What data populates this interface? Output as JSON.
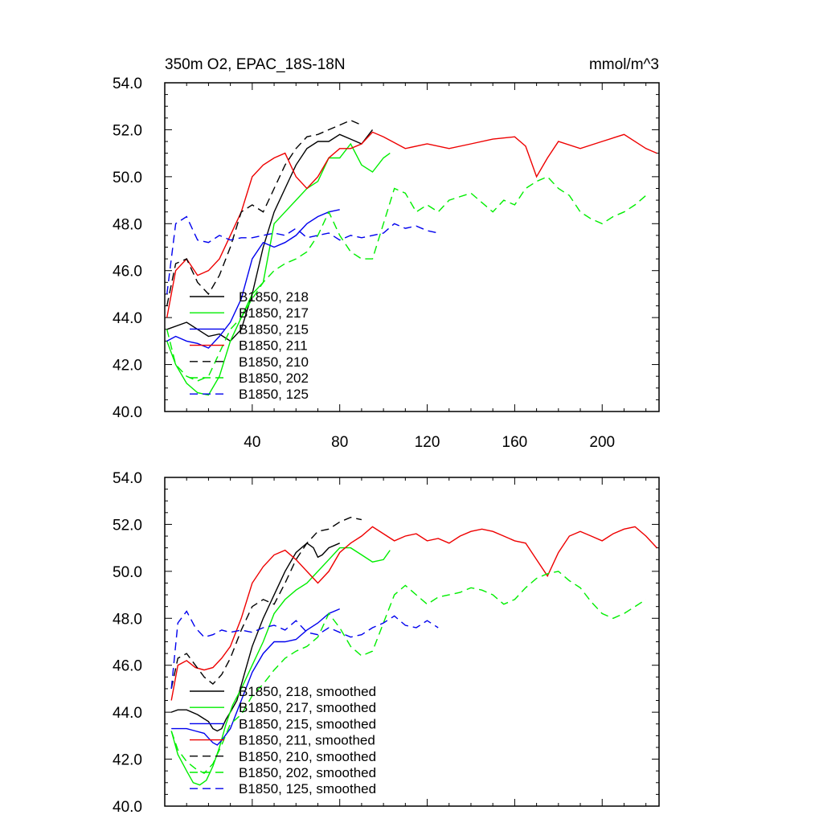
{
  "colors": {
    "black": "#000000",
    "green": "#00ee00",
    "blue": "#0000ee",
    "red": "#ee0000"
  },
  "chart_data": [
    {
      "type": "line",
      "title_left": "350m O2, EPAC_18S-18N",
      "title_right": "mmol/m^3",
      "xlabel": "",
      "ylabel": "",
      "xlim": [
        0,
        226
      ],
      "ylim": [
        40,
        54
      ],
      "yticks": [
        40,
        42,
        44,
        46,
        48,
        50,
        52,
        54
      ],
      "ytick_labels": [
        "40.0",
        "42.0",
        "44.0",
        "46.0",
        "48.0",
        "50.0",
        "52.0",
        "54.0"
      ],
      "xticks": [
        40,
        80,
        120,
        160,
        200
      ],
      "xtick_labels": [
        "40",
        "80",
        "120",
        "160",
        "200"
      ],
      "grid": false,
      "legend_position": "lower-left",
      "series": [
        {
          "name": "B1850, 218",
          "color": "black",
          "dash": "solid",
          "x": [
            1,
            10,
            20,
            25,
            30,
            35,
            40,
            45,
            50,
            55,
            60,
            65,
            70,
            75,
            80,
            85,
            90,
            95
          ],
          "y": [
            43.5,
            43.8,
            43.2,
            43.3,
            43.0,
            43.5,
            45.0,
            47.0,
            48.5,
            49.5,
            50.5,
            51.2,
            51.5,
            51.5,
            51.8,
            51.6,
            51.4,
            52.0
          ]
        },
        {
          "name": "B1850, 217",
          "color": "green",
          "dash": "solid",
          "x": [
            1,
            5,
            10,
            15,
            20,
            25,
            30,
            35,
            40,
            45,
            50,
            55,
            60,
            65,
            70,
            75,
            80,
            85,
            90,
            95,
            100,
            103
          ],
          "y": [
            43.0,
            42.0,
            41.2,
            40.8,
            40.7,
            41.5,
            43.0,
            44.0,
            45.0,
            45.5,
            48.0,
            48.5,
            49.0,
            49.5,
            49.8,
            50.8,
            50.8,
            51.4,
            50.5,
            50.2,
            50.8,
            51.0
          ]
        },
        {
          "name": "B1850, 215",
          "color": "blue",
          "dash": "solid",
          "x": [
            1,
            5,
            10,
            15,
            20,
            25,
            30,
            35,
            40,
            45,
            50,
            55,
            60,
            65,
            70,
            75,
            80
          ],
          "y": [
            43.0,
            43.2,
            43.0,
            42.9,
            42.7,
            43.2,
            43.8,
            44.8,
            46.5,
            47.2,
            47.0,
            47.2,
            47.5,
            48.0,
            48.3,
            48.5,
            48.6
          ]
        },
        {
          "name": "B1850, 211",
          "color": "red",
          "dash": "solid",
          "x": [
            1,
            5,
            10,
            15,
            20,
            25,
            30,
            35,
            40,
            45,
            50,
            55,
            60,
            65,
            70,
            75,
            80,
            85,
            90,
            95,
            100,
            110,
            120,
            130,
            140,
            150,
            160,
            165,
            170,
            175,
            180,
            190,
            200,
            210,
            220,
            225
          ],
          "y": [
            44.0,
            46.0,
            46.5,
            45.8,
            46.0,
            46.5,
            47.5,
            48.5,
            50.0,
            50.5,
            50.8,
            51.0,
            50.0,
            49.5,
            50.0,
            50.8,
            51.2,
            51.2,
            51.4,
            51.9,
            51.7,
            51.2,
            51.4,
            51.2,
            51.4,
            51.6,
            51.7,
            51.3,
            50.0,
            50.8,
            51.5,
            51.2,
            51.5,
            51.8,
            51.2,
            51.0
          ]
        },
        {
          "name": "B1850, 210",
          "color": "black",
          "dash": "dashed",
          "x": [
            1,
            5,
            10,
            15,
            20,
            25,
            30,
            35,
            40,
            45,
            50,
            55,
            60,
            65,
            70,
            75,
            80,
            85,
            90
          ],
          "y": [
            44.5,
            46.3,
            46.5,
            45.5,
            45.0,
            45.8,
            47.0,
            48.5,
            48.8,
            48.5,
            49.5,
            50.5,
            51.2,
            51.7,
            51.8,
            52.0,
            52.2,
            52.4,
            52.2
          ]
        },
        {
          "name": "B1850, 202",
          "color": "green",
          "dash": "dashed",
          "x": [
            1,
            5,
            10,
            15,
            20,
            25,
            30,
            35,
            40,
            45,
            50,
            55,
            60,
            65,
            70,
            75,
            80,
            85,
            90,
            95,
            100,
            105,
            110,
            115,
            120,
            125,
            130,
            140,
            150,
            155,
            160,
            165,
            170,
            175,
            180,
            185,
            190,
            195,
            200,
            205,
            210,
            215,
            220
          ],
          "y": [
            43.5,
            42.0,
            41.5,
            41.3,
            41.5,
            42.5,
            43.5,
            44.0,
            44.8,
            45.5,
            46.0,
            46.3,
            46.5,
            46.8,
            47.5,
            48.5,
            47.5,
            46.8,
            46.5,
            46.5,
            48.0,
            49.5,
            49.3,
            48.5,
            48.8,
            48.5,
            49.0,
            49.3,
            48.5,
            49.0,
            48.8,
            49.5,
            49.8,
            50.0,
            49.5,
            49.2,
            48.5,
            48.2,
            48.0,
            48.3,
            48.5,
            48.8,
            49.2
          ]
        },
        {
          "name": "B1850, 125",
          "color": "blue",
          "dash": "dashed",
          "x": [
            1,
            5,
            10,
            15,
            20,
            25,
            30,
            35,
            40,
            45,
            50,
            55,
            60,
            65,
            70,
            75,
            80,
            85,
            90,
            95,
            100,
            105,
            110,
            115,
            120,
            125
          ],
          "y": [
            45.0,
            48.0,
            48.3,
            47.3,
            47.2,
            47.5,
            47.3,
            47.4,
            47.4,
            47.5,
            47.6,
            47.5,
            47.8,
            47.4,
            47.5,
            47.6,
            47.3,
            47.5,
            47.4,
            47.5,
            47.6,
            48.0,
            47.8,
            47.9,
            47.7,
            47.6
          ]
        }
      ]
    },
    {
      "type": "line",
      "xlim": [
        0,
        226
      ],
      "ylim": [
        40,
        54
      ],
      "yticks": [
        40,
        42,
        44,
        46,
        48,
        50,
        52,
        54
      ],
      "ytick_labels": [
        "40.0",
        "42.0",
        "44.0",
        "46.0",
        "48.0",
        "50.0",
        "52.0",
        "54.0"
      ],
      "xticks": [
        40,
        80,
        120,
        160,
        200
      ],
      "grid": false,
      "legend_position": "lower-left",
      "series": [
        {
          "name": "B1850, 218, smoothed",
          "color": "black",
          "dash": "solid",
          "x": [
            3,
            6,
            10,
            15,
            20,
            22,
            24,
            26,
            28,
            30,
            33,
            36,
            40,
            45,
            50,
            55,
            60,
            65,
            68,
            70,
            72,
            75,
            80
          ],
          "y": [
            44.0,
            44.1,
            44.1,
            43.9,
            43.6,
            43.3,
            43.2,
            43.3,
            43.7,
            44.0,
            44.5,
            45.5,
            46.8,
            48.0,
            49.0,
            50.0,
            50.8,
            51.2,
            51.0,
            50.6,
            50.7,
            51.0,
            51.2
          ]
        },
        {
          "name": "B1850, 217, smoothed",
          "color": "green",
          "dash": "solid",
          "x": [
            3,
            6,
            10,
            13,
            16,
            19,
            22,
            25,
            28,
            31,
            35,
            40,
            45,
            50,
            55,
            60,
            65,
            70,
            75,
            80,
            85,
            90,
            95,
            100,
            103
          ],
          "y": [
            43.2,
            42.2,
            41.5,
            41.0,
            40.9,
            41.1,
            41.7,
            42.5,
            43.5,
            44.3,
            45.0,
            46.0,
            47.0,
            48.2,
            48.8,
            49.2,
            49.5,
            50.0,
            50.5,
            51.0,
            51.0,
            50.7,
            50.4,
            50.5,
            50.9
          ]
        },
        {
          "name": "B1850, 215, smoothed",
          "color": "blue",
          "dash": "solid",
          "x": [
            3,
            6,
            10,
            14,
            18,
            20,
            22,
            24,
            26,
            30,
            35,
            40,
            45,
            50,
            55,
            60,
            65,
            70,
            75,
            80
          ],
          "y": [
            43.3,
            43.3,
            43.3,
            43.2,
            43.1,
            42.9,
            42.7,
            42.6,
            42.8,
            43.3,
            44.5,
            45.7,
            46.5,
            47.0,
            47.0,
            47.1,
            47.5,
            47.8,
            48.2,
            48.4
          ]
        },
        {
          "name": "B1850, 211, smoothed",
          "color": "red",
          "dash": "solid",
          "x": [
            3,
            6,
            10,
            14,
            18,
            22,
            26,
            30,
            35,
            40,
            45,
            50,
            55,
            60,
            65,
            70,
            75,
            80,
            85,
            90,
            95,
            100,
            105,
            110,
            115,
            120,
            125,
            130,
            135,
            140,
            145,
            150,
            155,
            160,
            165,
            170,
            175,
            180,
            185,
            190,
            195,
            200,
            205,
            210,
            215,
            220,
            225
          ],
          "y": [
            44.5,
            46.0,
            46.2,
            45.9,
            45.8,
            45.9,
            46.3,
            46.8,
            48.0,
            49.5,
            50.2,
            50.7,
            50.9,
            50.5,
            50.0,
            49.5,
            50.0,
            50.8,
            51.2,
            51.5,
            51.9,
            51.6,
            51.3,
            51.5,
            51.6,
            51.3,
            51.4,
            51.2,
            51.5,
            51.7,
            51.8,
            51.7,
            51.5,
            51.3,
            51.2,
            50.5,
            49.8,
            50.8,
            51.5,
            51.7,
            51.5,
            51.3,
            51.6,
            51.8,
            51.9,
            51.5,
            51.0
          ]
        },
        {
          "name": "B1850, 210, smoothed",
          "color": "black",
          "dash": "dashed",
          "x": [
            3,
            6,
            10,
            14,
            18,
            22,
            26,
            30,
            35,
            40,
            45,
            50,
            55,
            60,
            65,
            70,
            75,
            80,
            85,
            90
          ],
          "y": [
            45.0,
            46.3,
            46.5,
            46.0,
            45.5,
            45.2,
            45.6,
            46.3,
            47.5,
            48.5,
            48.8,
            48.6,
            49.5,
            50.5,
            51.2,
            51.7,
            51.8,
            52.1,
            52.3,
            52.2
          ]
        },
        {
          "name": "B1850, 202, smoothed",
          "color": "green",
          "dash": "dashed",
          "x": [
            3,
            6,
            10,
            14,
            18,
            22,
            26,
            30,
            35,
            40,
            45,
            50,
            55,
            60,
            65,
            70,
            75,
            80,
            85,
            90,
            95,
            100,
            105,
            110,
            115,
            120,
            125,
            130,
            135,
            140,
            145,
            150,
            155,
            160,
            165,
            170,
            175,
            180,
            185,
            190,
            195,
            200,
            205,
            210,
            215,
            220
          ],
          "y": [
            43.2,
            42.4,
            41.9,
            41.6,
            41.4,
            41.8,
            42.6,
            43.5,
            43.9,
            44.7,
            45.2,
            45.8,
            46.3,
            46.6,
            46.8,
            47.2,
            48.2,
            47.6,
            46.8,
            46.4,
            46.6,
            47.8,
            49.0,
            49.4,
            49.0,
            48.6,
            48.9,
            49.0,
            49.1,
            49.3,
            49.2,
            49.0,
            48.6,
            48.8,
            49.3,
            49.7,
            49.9,
            50.0,
            49.6,
            49.3,
            48.7,
            48.2,
            48.0,
            48.2,
            48.5,
            48.8
          ]
        },
        {
          "name": "B1850, 125, smoothed",
          "color": "blue",
          "dash": "dashed",
          "x": [
            3,
            6,
            10,
            14,
            18,
            22,
            26,
            30,
            35,
            40,
            45,
            50,
            55,
            60,
            65,
            70,
            75,
            80,
            85,
            90,
            95,
            100,
            105,
            110,
            115,
            120,
            125
          ],
          "y": [
            45.0,
            47.8,
            48.3,
            47.6,
            47.2,
            47.3,
            47.5,
            47.4,
            47.5,
            47.4,
            47.6,
            47.7,
            47.5,
            47.9,
            47.4,
            47.3,
            47.6,
            47.4,
            47.2,
            47.3,
            47.6,
            47.8,
            48.1,
            47.7,
            47.6,
            47.9,
            47.6
          ]
        }
      ]
    }
  ]
}
